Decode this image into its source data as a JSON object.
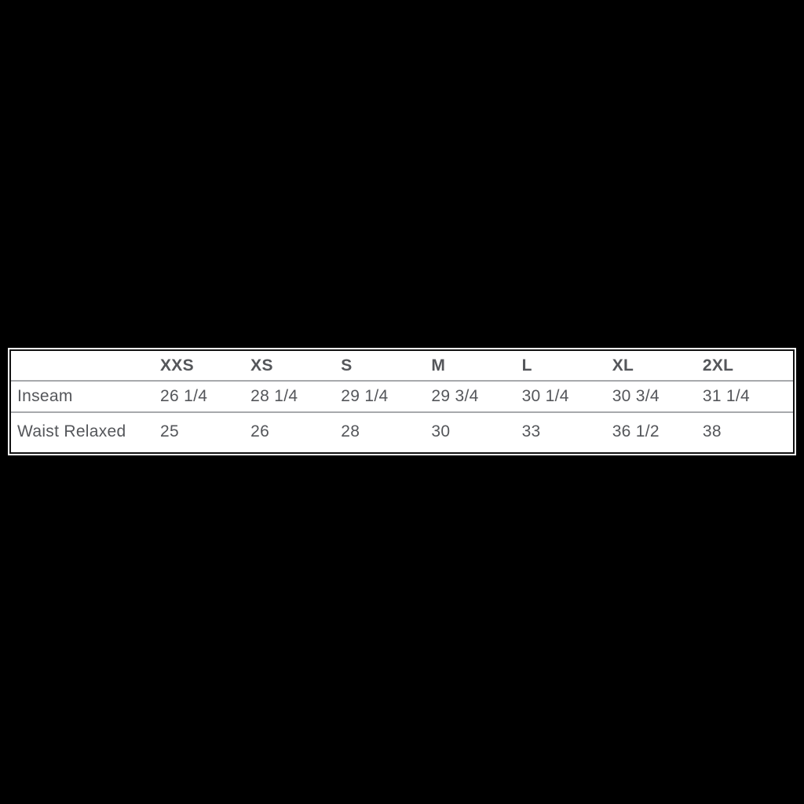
{
  "page": {
    "background_color": "#000000",
    "sheet_background_color": "#ffffff",
    "border_color": "#121212",
    "separator_color": "#A7A9AC",
    "text_color": "#54565A"
  },
  "size_chart": {
    "columns": [
      "XXS",
      "XS",
      "S",
      "M",
      "L",
      "XL",
      "2XL"
    ],
    "rows": [
      {
        "label": "Inseam",
        "values": [
          "26 1/4",
          "28 1/4",
          "29 1/4",
          "29 3/4",
          "30 1/4",
          "30 3/4",
          "31 1/4"
        ]
      },
      {
        "label": "Waist Relaxed",
        "values": [
          "25",
          "26",
          "28",
          "30",
          "33",
          "36 1/2",
          "38"
        ]
      }
    ]
  },
  "chart_data": {
    "type": "table",
    "title": "",
    "columns": [
      "",
      "XXS",
      "XS",
      "S",
      "M",
      "L",
      "XL",
      "2XL"
    ],
    "rows": [
      [
        "Inseam",
        "26 1/4",
        "28 1/4",
        "29 1/4",
        "29 3/4",
        "30 1/4",
        "30 3/4",
        "31 1/4"
      ],
      [
        "Waist Relaxed",
        "25",
        "26",
        "28",
        "30",
        "33",
        "36 1/2",
        "38"
      ]
    ]
  }
}
